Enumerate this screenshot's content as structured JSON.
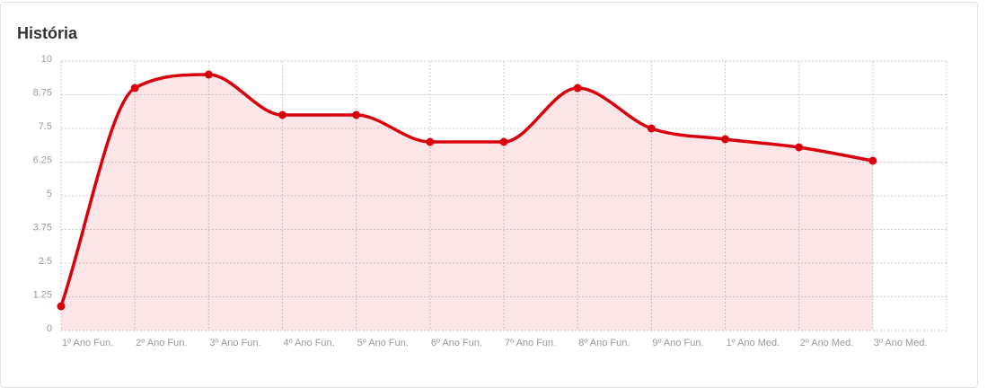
{
  "chart_data": {
    "type": "line",
    "title": "História",
    "categories": [
      "1º Ano Fun.",
      "2º Ano Fun.",
      "3º Ano Fun.",
      "4º Ano Fun.",
      "5º Ano Fun.",
      "6º Ano Fun.",
      "7º Ano Fun.",
      "8º Ano Fun.",
      "9º Ano Fun.",
      "1º Ano Med.",
      "2º Ano Med.",
      "3º Ano Med."
    ],
    "series": [
      {
        "color": "#d9000d",
        "values": [
          0.9,
          9.0,
          9.5,
          8.0,
          8.0,
          7.0,
          7.0,
          9.0,
          7.5,
          7.1,
          6.8,
          6.3
        ]
      }
    ],
    "ylim": [
      0,
      10
    ],
    "yticks": [
      0,
      1.25,
      2.5,
      3.75,
      5,
      6.25,
      7.5,
      8.75,
      10
    ],
    "grid": true,
    "area": true
  }
}
